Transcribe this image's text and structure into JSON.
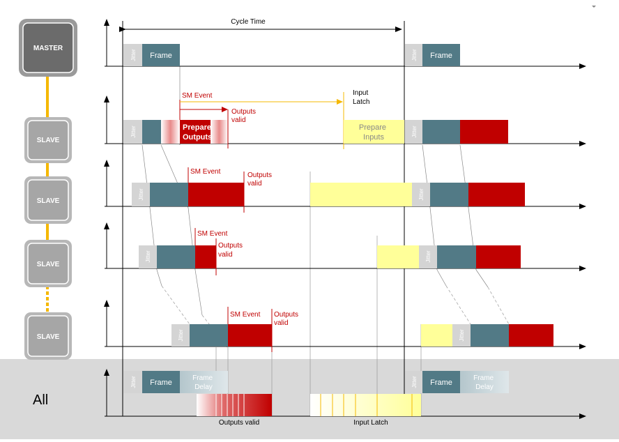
{
  "title": "Cycle Time",
  "nodes": {
    "master": "MASTER",
    "slave": "SLAVE"
  },
  "all_label": "All",
  "labels": {
    "jitter": "Jitter",
    "frame": "Frame",
    "sm_event": "SM Event",
    "outputs_valid_line1": "Outputs",
    "outputs_valid_line2": "valid",
    "input_latch_line1": "Input",
    "input_latch_line2": "Latch",
    "prepare_outputs_line1": "Prepare",
    "prepare_outputs_line2": "Outputs",
    "prepare_inputs_line1": "Prepare",
    "prepare_inputs_line2": "Inputs",
    "frame_delay_line1": "Frame",
    "frame_delay_line2": "Delay",
    "bottom_outputs_valid": "Outputs valid",
    "bottom_input_latch": "Input Latch"
  },
  "colors": {
    "jitter": "#d4d4d4",
    "frame": "#527a86",
    "output": "#c00000",
    "input": "#ffff99",
    "sync_line": "#f5b800",
    "panel": "#d9d9d9",
    "node_master": "#6b6b6b",
    "node_slave": "#a6a6a6"
  }
}
